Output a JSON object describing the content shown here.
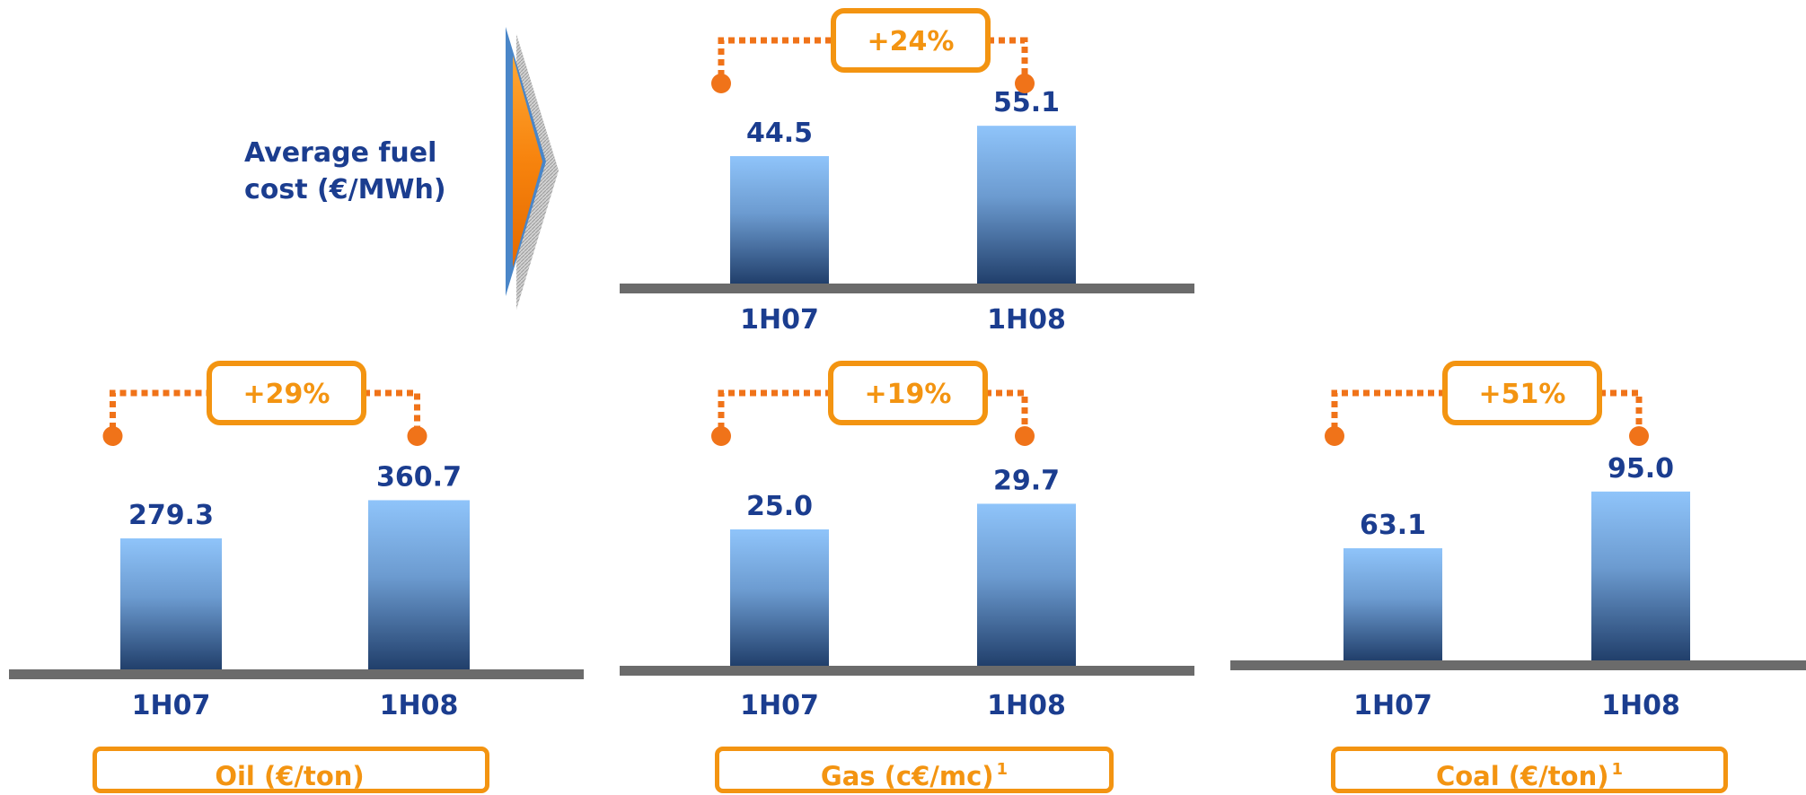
{
  "side_label": "Average fuel cost (€/MWh)",
  "colors": {
    "value_text": "#1b3d8f",
    "accent_orange": "#f39411",
    "connector_orange": "#f07319",
    "baseline": "#6b6b6b",
    "bar_top": "#8fc4fa",
    "bar_bottom": "#213f6b"
  },
  "chart_data": [
    {
      "id": "avg",
      "type": "bar",
      "title": "",
      "categories": [
        "1H07",
        "1H08"
      ],
      "values": [
        44.5,
        55.1
      ],
      "value_labels": [
        "44.5",
        "55.1"
      ],
      "change_label": "+24%",
      "category_label": "",
      "footnote": ""
    },
    {
      "id": "oil",
      "type": "bar",
      "title": "",
      "categories": [
        "1H07",
        "1H08"
      ],
      "values": [
        279.3,
        360.7
      ],
      "value_labels": [
        "279.3",
        "360.7"
      ],
      "change_label": "+29%",
      "category_label": "Oil (€/ton)",
      "footnote": ""
    },
    {
      "id": "gas",
      "type": "bar",
      "title": "",
      "categories": [
        "1H07",
        "1H08"
      ],
      "values": [
        25.0,
        29.7
      ],
      "value_labels": [
        "25.0",
        "29.7"
      ],
      "change_label": "+19%",
      "category_label": "Gas (c€/mc)",
      "footnote": "1"
    },
    {
      "id": "coal",
      "type": "bar",
      "title": "",
      "categories": [
        "1H07",
        "1H08"
      ],
      "values": [
        63.1,
        95.0
      ],
      "value_labels": [
        "63.1",
        "95.0"
      ],
      "change_label": "+51%",
      "category_label": "Coal (€/ton)",
      "footnote": "1"
    }
  ]
}
